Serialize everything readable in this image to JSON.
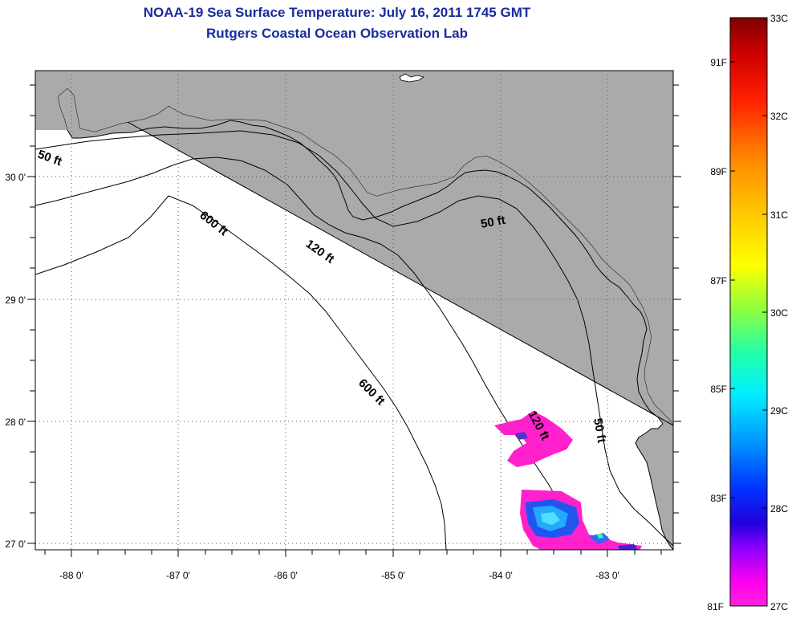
{
  "title": {
    "line1": "NOAA-19 Sea Surface Temperature:  July 16, 2011 1745 GMT",
    "line2": "Rutgers Coastal Ocean Observation Lab"
  },
  "map": {
    "lon_range": [
      -88.33,
      -82.1
    ],
    "lat_range": [
      26.96,
      30.86
    ],
    "lon_labels": [
      "-88 0'",
      "-87 0'",
      "-86 0'",
      "-85 0'",
      "-84 0'",
      "-83 0'"
    ],
    "lat_labels": [
      "30 0'",
      "29 0'",
      "28 0'",
      "27 0'"
    ],
    "land_color": "#aaaaaa",
    "gridlines": true,
    "contour_labels": [
      {
        "text": "50 ft"
      },
      {
        "text": "600 ft"
      },
      {
        "text": "120 ft"
      },
      {
        "text": "50 ft"
      },
      {
        "text": "600 ft"
      },
      {
        "text": "120 ft"
      },
      {
        "text": "50 ft"
      }
    ]
  },
  "colorbar": {
    "c_labels": [
      "33C",
      "32C",
      "31C",
      "30C",
      "29C",
      "28C",
      "27C"
    ],
    "f_labels": [
      "91F",
      "89F",
      "87F",
      "85F",
      "83F",
      "81F"
    ],
    "max_color": "#800000",
    "min_color": "#ff00ff"
  }
}
